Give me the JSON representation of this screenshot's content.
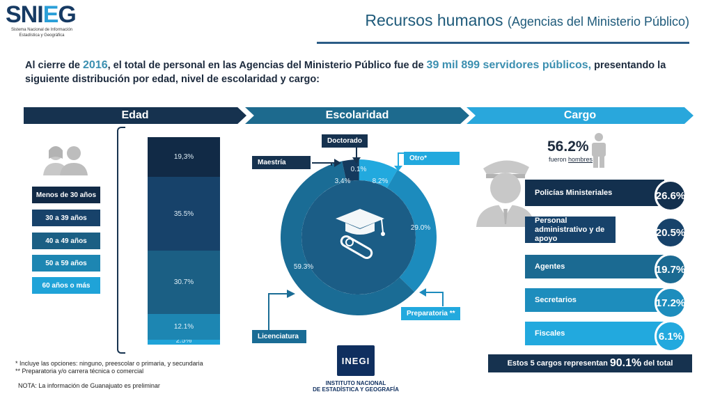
{
  "header": {
    "logo": "SNIEG",
    "logo_sub": "Sistema Nacional de Información Estadística y Geográfica",
    "title": "Recursos humanos",
    "title_sub": "(Agencias del Ministerio Público)"
  },
  "intro": {
    "part1": "Al cierre de ",
    "year": "2016",
    "part2": ", el total de personal en las Agencias del Ministerio Público fue de ",
    "total": "39 mil 899 servidores públicos,",
    "part3": " presentando la siguiente distribución por edad, nivel de escolaridad y cargo:"
  },
  "sections": {
    "edad": "Edad",
    "escolaridad": "Escolaridad",
    "cargo": "Cargo"
  },
  "edad": {
    "groups": [
      {
        "label": "Menos de 30 años",
        "value": "2.5%",
        "pct": 2.5,
        "color": "#1fa3d8"
      },
      {
        "label": "30 a 39 años",
        "value": "12.1%",
        "pct": 12.1,
        "color": "#1d86b2"
      },
      {
        "label": "40 a 49 años",
        "value": "30.7%",
        "pct": 30.7,
        "color": "#1b5f84"
      },
      {
        "label": "50 a 59 años",
        "value": "35.5%",
        "pct": 35.5,
        "color": "#17426a"
      },
      {
        "label": "60 años o más",
        "value": "19,3%",
        "pct": 19.3,
        "color": "#112a46"
      }
    ],
    "button_colors": [
      "#112a46",
      "#17426a",
      "#1b5f84",
      "#1d86b2",
      "#1fa3d8"
    ]
  },
  "escolaridad": {
    "slices": [
      {
        "label": "Doctorado",
        "value": "0.1%",
        "pct": 0.1,
        "color": "#0c1f36"
      },
      {
        "label": "Otro*",
        "value": "8.2%",
        "pct": 8.2,
        "color": "#22a9de"
      },
      {
        "label": "Preparatoria **",
        "value": "29.0%",
        "pct": 29.0,
        "color": "#1c8bbd"
      },
      {
        "label": "Licenciatura",
        "value": "59.3%",
        "pct": 59.3,
        "color": "#1a6c95"
      },
      {
        "label": "Maestría",
        "value": "3.4%",
        "pct": 3.4,
        "color": "#143a5e"
      }
    ]
  },
  "cargo": {
    "men_pct": "56.2%",
    "men_text_1": "fueron ",
    "men_text_2": "hombres",
    "items": [
      {
        "label": "Policías Ministeriales",
        "value": "26.6%",
        "color": "#13304e"
      },
      {
        "label": "Personal administrativo y de apoyo",
        "value": "20.5%",
        "color": "#17426a"
      },
      {
        "label": "Agentes",
        "value": "19.7%",
        "color": "#1b6a92"
      },
      {
        "label": "Secretarios",
        "value": "17.2%",
        "color": "#1d8dbd"
      },
      {
        "label": "Fiscales",
        "value": "6.1%",
        "color": "#22a9de"
      }
    ],
    "summary_1": "Estos 5 cargos representan ",
    "summary_pct": "90.1%",
    "summary_2": " del total"
  },
  "footnotes": {
    "note1": "* Incluye las opciones: ninguno, preescolar o primaria, y secundaria",
    "note2": "**  Preparatoria y/o carrera técnica o comercial",
    "note3": "NOTA: La información de Guanajuato es preliminar"
  },
  "inegi": {
    "logo": "INEGI",
    "name1": "INSTITUTO NACIONAL",
    "name2": "DE ESTADÍSTICA Y GEOGRAFÍA"
  }
}
